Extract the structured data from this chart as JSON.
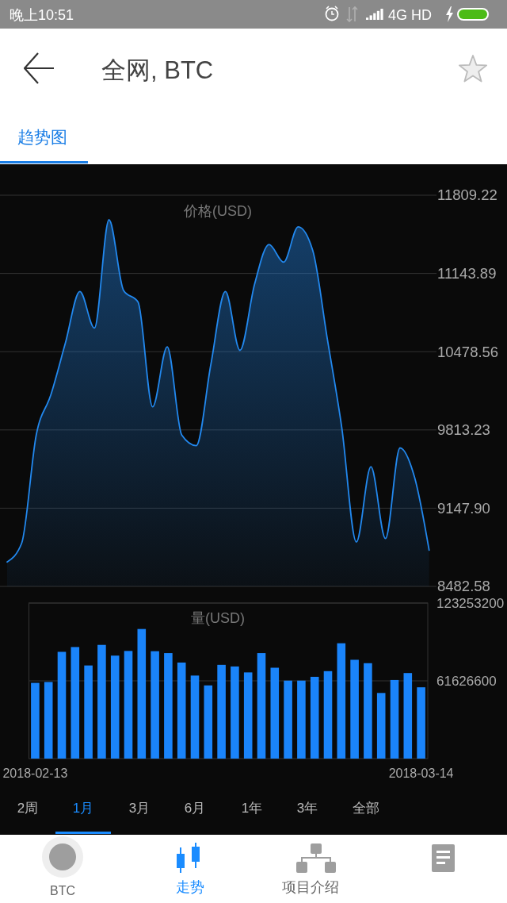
{
  "chart_data": [
    {
      "type": "area",
      "title": "全网, BTC",
      "ylabel": "价格(USD)",
      "categories": [
        null,
        null,
        null,
        null,
        null,
        null,
        null,
        null,
        null,
        null,
        null,
        null,
        null,
        null,
        null,
        null,
        null,
        null,
        null,
        null,
        null,
        null,
        null,
        null,
        null,
        null,
        null,
        null,
        null,
        null
      ],
      "values": [
        8690,
        8850,
        9770,
        10110,
        10550,
        10990,
        10680,
        11600,
        11000,
        10900,
        10010,
        10520,
        9770,
        9680,
        10370,
        10990,
        10490,
        11050,
        11390,
        11240,
        11540,
        11340,
        10590,
        9830,
        8860,
        9500,
        8890,
        9660,
        9410,
        8790
      ],
      "color": "#2288ee",
      "ylim": [
        8482.58,
        11809.22
      ],
      "yticks": [
        8482.58,
        {
          "value": 9147.9,
          "label": "9147.90"
        },
        9813.23,
        10478.56,
        11143.89,
        11809.22
      ],
      "grid": "y",
      "tick_labels": "y",
      "annotations": [
        "晚上10:51",
        "4G HD",
        "趋势图"
      ]
    },
    {
      "type": "bar",
      "ylabel": "量(USD)",
      "x": [
        "2018-02-13",
        "2018-02-14",
        "2018-02-15",
        "2018-02-16",
        "2018-02-17",
        "2018-02-18",
        "2018-02-19",
        "2018-02-20",
        "2018-02-21",
        "2018-02-22",
        "2018-02-23",
        "2018-02-24",
        "2018-02-25",
        "2018-02-26",
        "2018-02-27",
        "2018-02-28",
        "2018-03-01",
        "2018-03-02",
        "2018-03-03",
        "2018-03-04",
        "2018-03-05",
        "2018-03-06",
        "2018-03-07",
        "2018-03-08",
        "2018-03-09",
        "2018-03-10",
        "2018-03-11",
        "2018-03-12",
        "2018-03-13",
        "2018-03-14"
      ],
      "values": [
        60000000,
        60700000,
        84600000,
        88400000,
        73800000,
        90100000,
        81600000,
        85300000,
        102700000,
        85100000,
        83600000,
        76100000,
        65800000,
        58000000,
        74300000,
        73000000,
        68300000,
        83600000,
        72000000,
        61800000,
        61800000,
        64800000,
        69300000,
        91400000,
        78300000,
        75600000,
        52000000,
        62300000,
        67800000,
        56500000
      ],
      "color": "#1a84fa",
      "xlim": [
        "2018-02-12T12:00",
        "2018-03-14T12:00"
      ],
      "xticks": [
        "2018-02-13",
        "2018-03-14"
      ],
      "ylim": [
        0,
        123253200
      ],
      "yticks": [
        61626600,
        123253200
      ],
      "grid": "y",
      "annotations": [
        "2周",
        "1月",
        "3月",
        "6月",
        "1年",
        "3年",
        "全部",
        "BTC",
        "走势",
        "项目介绍"
      ]
    }
  ]
}
